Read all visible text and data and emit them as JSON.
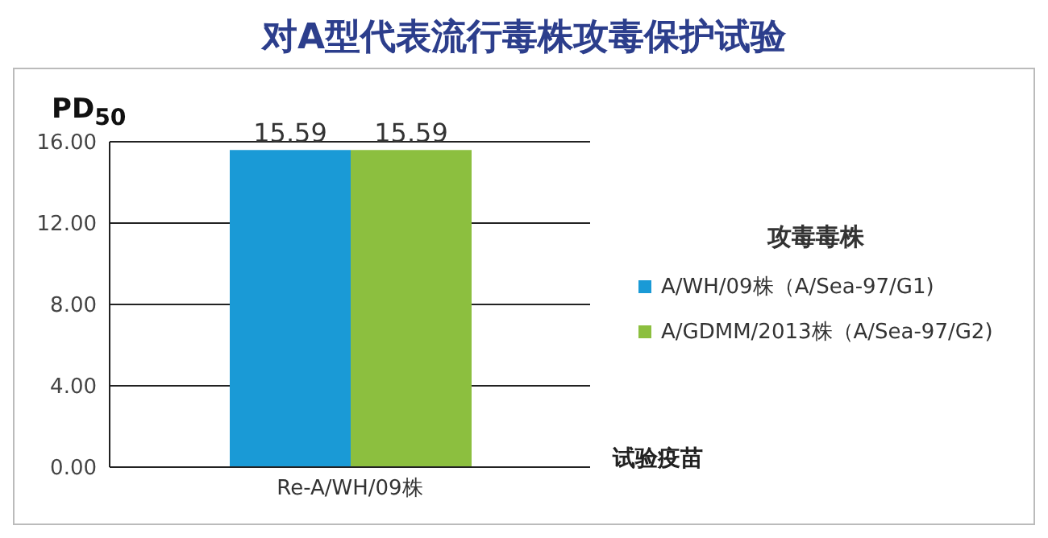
{
  "chart_data": {
    "type": "bar",
    "title": "对A型代表流行毒株攻毒保护试验",
    "ylabel": "PD$_{50}$",
    "xlabel": "试验疫苗",
    "legend_title": "攻毒毒株",
    "categories": [
      "Re-A/WH/09株"
    ],
    "series": [
      {
        "name": "A/WH/09株（A/Sea-97/G1)",
        "color": "#1a9ad6",
        "values": [
          15.59
        ]
      },
      {
        "name": "A/GDMM/2013株（A/Sea-97/G2)",
        "color": "#8cbf3f",
        "values": [
          15.59
        ]
      }
    ],
    "ylim": [
      0,
      16
    ],
    "yticks": [
      {
        "value": 0,
        "label": "0.00"
      },
      {
        "value": 4,
        "label": "4.00"
      },
      {
        "value": 8,
        "label": "8.00"
      },
      {
        "value": 12,
        "label": "12.00"
      },
      {
        "value": 16,
        "label": "16.00"
      }
    ],
    "grid": "y",
    "legend": "right",
    "data_labels": true
  }
}
